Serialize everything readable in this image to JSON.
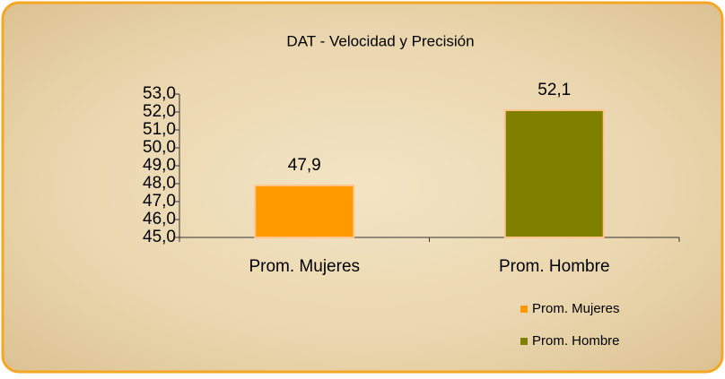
{
  "chart_data": {
    "type": "bar",
    "title": "DAT - Velocidad y Precisión",
    "categories": [
      "Prom. Mujeres",
      "Prom. Hombre"
    ],
    "values": [
      47.9,
      52.1
    ],
    "value_labels": [
      "47,9",
      "52,1"
    ],
    "colors": [
      "#ff9900",
      "#808000"
    ],
    "ylim": [
      45,
      53
    ],
    "yticks": [
      {
        "value": 45,
        "label": "45,0"
      },
      {
        "value": 46,
        "label": "46,0"
      },
      {
        "value": 47,
        "label": "47,0"
      },
      {
        "value": 48,
        "label": "48,0"
      },
      {
        "value": 49,
        "label": "49,0"
      },
      {
        "value": 50,
        "label": "50,0"
      },
      {
        "value": 51,
        "label": "51,0"
      },
      {
        "value": 52,
        "label": "52,0"
      },
      {
        "value": 53,
        "label": "53,0"
      }
    ],
    "legend": "bottom-right"
  }
}
